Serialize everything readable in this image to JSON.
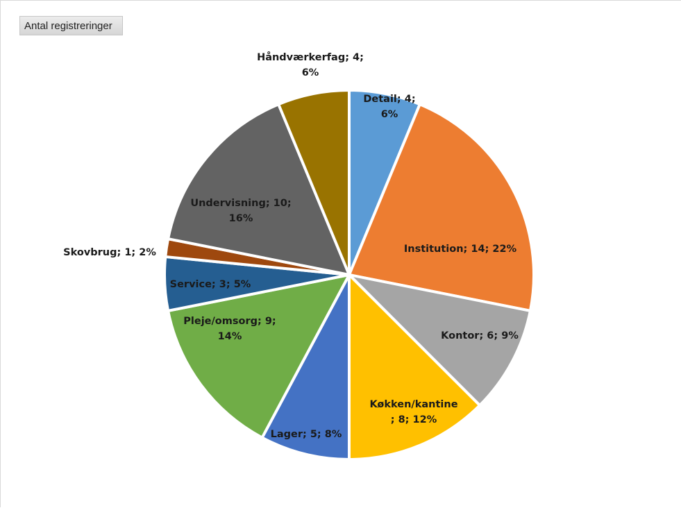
{
  "pivot_field_button": "Antal registreringer",
  "chart_data": {
    "type": "pie",
    "title": "",
    "legend": "none",
    "start_angle_deg": 0,
    "slices": [
      {
        "name": "Detail",
        "value": 4,
        "percent": "6%",
        "color": "#5B9BD5",
        "label_lines": [
          "Detail; 4;",
          "6%"
        ]
      },
      {
        "name": "Institution",
        "value": 14,
        "percent": "22%",
        "color": "#ED7D31",
        "label_lines": [
          "Institution; 14; 22%"
        ]
      },
      {
        "name": "Kontor",
        "value": 6,
        "percent": "9%",
        "color": "#A5A5A5",
        "label_lines": [
          "Kontor; 6; 9%"
        ]
      },
      {
        "name": "Køkken/kantine",
        "value": 8,
        "percent": "12%",
        "color": "#FFC000",
        "label_lines": [
          "Køkken/kantine",
          "; 8; 12%"
        ]
      },
      {
        "name": "Lager",
        "value": 5,
        "percent": "8%",
        "color": "#4472C4",
        "label_lines": [
          "Lager; 5; 8%"
        ]
      },
      {
        "name": "Pleje/omsorg",
        "value": 9,
        "percent": "14%",
        "color": "#70AD47",
        "label_lines": [
          "Pleje/omsorg; 9;",
          "14%"
        ]
      },
      {
        "name": "Service",
        "value": 3,
        "percent": "5%",
        "color": "#255E91",
        "label_lines": [
          "Service; 3; 5%"
        ]
      },
      {
        "name": "Skovbrug",
        "value": 1,
        "percent": "2%",
        "color": "#9E480E",
        "label_lines": [
          "Skovbrug; 1; 2%"
        ]
      },
      {
        "name": "Undervisning",
        "value": 10,
        "percent": "16%",
        "color": "#636363",
        "label_lines": [
          "Undervisning; 10;",
          "16%"
        ]
      },
      {
        "name": "Håndværkerfag",
        "value": 4,
        "percent": "6%",
        "color": "#997300",
        "label_lines": [
          "Håndværkerfag; 4;",
          "6%"
        ]
      }
    ]
  }
}
